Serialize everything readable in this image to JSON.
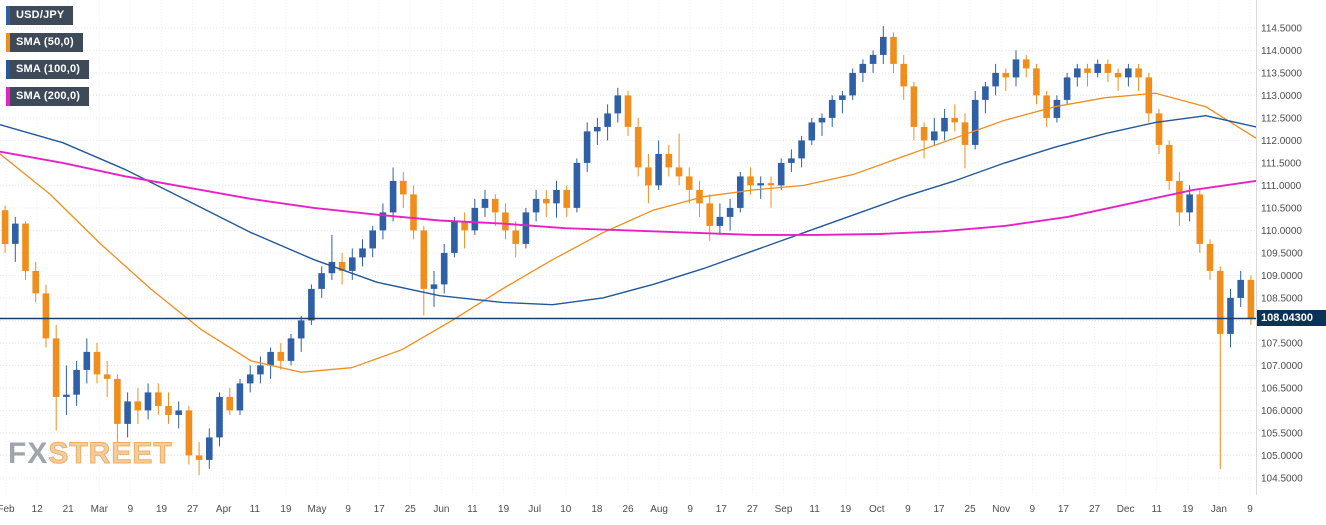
{
  "chart": {
    "symbol": "USD/JPY",
    "legend": [
      {
        "label": "USD/JPY",
        "color": "#2f5fa5"
      },
      {
        "label": "SMA (50,0)",
        "color": "#ef8e1c"
      },
      {
        "label": "SMA (100,0)",
        "color": "#23589c"
      },
      {
        "label": "SMA (200,0)",
        "color": "#e622c6"
      }
    ],
    "watermark": {
      "part1": "FX",
      "part2": "STREET"
    },
    "last_price_label": "108.04300",
    "badge_bg": "#0d3257"
  },
  "chart_data": {
    "type": "candlestick",
    "title": "USD/JPY",
    "symbol": "USD/JPY",
    "ylim": [
      104.5,
      114.5
    ],
    "grid": true,
    "legend_position": "top-left",
    "last_price": 108.043,
    "last_price_line_color": "#1c3b60",
    "candle_up_color": "#2f5fa5",
    "candle_down_color": "#ef8e1c",
    "y_ticks": [
      "114.5000",
      "114.0000",
      "113.5000",
      "113.0000",
      "112.5000",
      "112.0000",
      "111.5000",
      "111.0000",
      "110.5000",
      "110.0000",
      "109.5000",
      "109.0000",
      "108.5000",
      "107.5000",
      "107.0000",
      "106.5000",
      "106.0000",
      "105.5000",
      "105.0000",
      "104.5000"
    ],
    "x_ticks": [
      "Feb",
      "12",
      "21",
      "Mar",
      "9",
      "19",
      "27",
      "Apr",
      "11",
      "19",
      "May",
      "9",
      "17",
      "25",
      "Jun",
      "11",
      "19",
      "Jul",
      "10",
      "18",
      "26",
      "Aug",
      "9",
      "17",
      "27",
      "Sep",
      "11",
      "19",
      "Oct",
      "9",
      "17",
      "25",
      "Nov",
      "9",
      "17",
      "27",
      "Dec",
      "11",
      "19",
      "Jan",
      "9"
    ],
    "candles": [
      [
        110.45,
        110.55,
        109.5,
        109.7
      ],
      [
        109.7,
        110.3,
        109.3,
        110.15
      ],
      [
        110.15,
        110.2,
        108.9,
        109.1
      ],
      [
        109.1,
        109.3,
        108.4,
        108.6
      ],
      [
        108.6,
        108.8,
        107.4,
        107.6
      ],
      [
        107.6,
        107.9,
        105.55,
        106.3
      ],
      [
        106.3,
        107.0,
        105.9,
        106.35
      ],
      [
        106.35,
        107.1,
        106.1,
        106.9
      ],
      [
        106.9,
        107.6,
        106.6,
        107.3
      ],
      [
        107.3,
        107.5,
        106.6,
        106.8
      ],
      [
        106.8,
        107.1,
        106.3,
        106.7
      ],
      [
        106.7,
        106.8,
        105.3,
        105.7
      ],
      [
        105.7,
        106.4,
        105.4,
        106.2
      ],
      [
        106.2,
        106.5,
        105.7,
        106.0
      ],
      [
        106.0,
        106.6,
        105.8,
        106.4
      ],
      [
        106.4,
        106.6,
        105.9,
        106.1
      ],
      [
        106.1,
        106.4,
        105.7,
        105.9
      ],
      [
        105.9,
        106.2,
        105.6,
        106.0
      ],
      [
        106.0,
        106.1,
        104.8,
        105.0
      ],
      [
        105.0,
        105.3,
        104.56,
        104.9
      ],
      [
        104.9,
        105.6,
        104.7,
        105.4
      ],
      [
        105.4,
        106.4,
        105.2,
        106.3
      ],
      [
        106.3,
        106.5,
        105.9,
        106.0
      ],
      [
        106.0,
        106.7,
        105.9,
        106.6
      ],
      [
        106.6,
        107.0,
        106.4,
        106.8
      ],
      [
        106.8,
        107.2,
        106.6,
        107.0
      ],
      [
        107.0,
        107.4,
        106.7,
        107.3
      ],
      [
        107.3,
        107.5,
        106.9,
        107.1
      ],
      [
        107.1,
        107.7,
        107.0,
        107.6
      ],
      [
        107.6,
        108.1,
        107.3,
        108.0
      ],
      [
        108.0,
        108.8,
        107.9,
        108.7
      ],
      [
        108.7,
        109.2,
        108.5,
        109.05
      ],
      [
        109.05,
        109.9,
        108.9,
        109.3
      ],
      [
        109.3,
        109.5,
        108.8,
        109.1
      ],
      [
        109.1,
        109.6,
        108.9,
        109.4
      ],
      [
        109.4,
        109.8,
        109.2,
        109.6
      ],
      [
        109.6,
        110.1,
        109.4,
        110.0
      ],
      [
        110.0,
        110.6,
        109.8,
        110.4
      ],
      [
        110.4,
        111.4,
        110.2,
        111.1
      ],
      [
        111.1,
        111.3,
        110.5,
        110.8
      ],
      [
        110.8,
        111.0,
        109.8,
        110.0
      ],
      [
        110.0,
        110.1,
        108.11,
        108.7
      ],
      [
        108.7,
        109.1,
        108.3,
        108.8
      ],
      [
        108.8,
        109.7,
        108.6,
        109.5
      ],
      [
        109.5,
        110.3,
        109.4,
        110.2
      ],
      [
        110.2,
        110.4,
        109.6,
        110.0
      ],
      [
        110.0,
        110.7,
        109.9,
        110.5
      ],
      [
        110.5,
        110.9,
        110.3,
        110.7
      ],
      [
        110.7,
        110.8,
        110.1,
        110.4
      ],
      [
        110.4,
        110.6,
        109.8,
        110.0
      ],
      [
        110.0,
        110.2,
        109.4,
        109.7
      ],
      [
        109.7,
        110.5,
        109.6,
        110.4
      ],
      [
        110.4,
        110.9,
        110.2,
        110.7
      ],
      [
        110.7,
        110.9,
        110.3,
        110.6
      ],
      [
        110.6,
        111.1,
        110.28,
        110.9
      ],
      [
        110.9,
        111.0,
        110.3,
        110.5
      ],
      [
        110.5,
        111.6,
        110.4,
        111.5
      ],
      [
        111.5,
        112.4,
        111.3,
        112.2
      ],
      [
        112.2,
        112.5,
        111.9,
        112.3
      ],
      [
        112.3,
        112.8,
        112.0,
        112.6
      ],
      [
        112.6,
        113.17,
        112.4,
        113.0
      ],
      [
        113.0,
        113.1,
        112.1,
        112.3
      ],
      [
        112.3,
        112.5,
        111.2,
        111.4
      ],
      [
        111.4,
        111.7,
        110.6,
        111.0
      ],
      [
        111.0,
        112.0,
        110.9,
        111.7
      ],
      [
        111.7,
        111.9,
        111.2,
        111.4
      ],
      [
        111.4,
        112.15,
        111.0,
        111.2
      ],
      [
        111.2,
        111.4,
        110.6,
        110.9
      ],
      [
        110.9,
        111.1,
        110.3,
        110.6
      ],
      [
        110.6,
        110.8,
        109.77,
        110.1
      ],
      [
        110.1,
        110.6,
        109.9,
        110.3
      ],
      [
        110.3,
        110.7,
        110.0,
        110.5
      ],
      [
        110.5,
        111.3,
        110.4,
        111.2
      ],
      [
        111.2,
        111.4,
        110.8,
        111.0
      ],
      [
        111.0,
        111.2,
        110.7,
        111.05
      ],
      [
        111.05,
        111.2,
        110.5,
        111.0
      ],
      [
        111.0,
        111.6,
        110.9,
        111.5
      ],
      [
        111.5,
        111.8,
        111.3,
        111.6
      ],
      [
        111.6,
        112.1,
        111.4,
        112.0
      ],
      [
        112.0,
        112.5,
        111.9,
        112.4
      ],
      [
        112.4,
        112.6,
        112.1,
        112.5
      ],
      [
        112.5,
        113.0,
        112.3,
        112.9
      ],
      [
        112.9,
        113.1,
        112.6,
        113.0
      ],
      [
        113.0,
        113.6,
        112.9,
        113.5
      ],
      [
        113.5,
        113.8,
        113.3,
        113.7
      ],
      [
        113.7,
        114.0,
        113.5,
        113.9
      ],
      [
        113.9,
        114.54,
        113.7,
        114.3
      ],
      [
        114.3,
        114.4,
        113.5,
        113.7
      ],
      [
        113.7,
        113.9,
        112.9,
        113.2
      ],
      [
        113.2,
        113.3,
        112.0,
        112.3
      ],
      [
        112.3,
        112.4,
        111.6,
        112.0
      ],
      [
        112.0,
        112.5,
        111.9,
        112.2
      ],
      [
        112.2,
        112.7,
        112.0,
        112.5
      ],
      [
        112.5,
        112.8,
        112.2,
        112.4
      ],
      [
        112.4,
        112.6,
        111.38,
        111.9
      ],
      [
        111.9,
        113.1,
        111.8,
        112.9
      ],
      [
        112.9,
        113.3,
        112.6,
        113.2
      ],
      [
        113.2,
        113.7,
        113.0,
        113.5
      ],
      [
        113.5,
        113.6,
        113.1,
        113.4
      ],
      [
        113.4,
        114.0,
        113.2,
        113.8
      ],
      [
        113.8,
        113.9,
        113.4,
        113.6
      ],
      [
        113.6,
        113.7,
        112.8,
        113.0
      ],
      [
        113.0,
        113.1,
        112.3,
        112.5
      ],
      [
        112.5,
        113.0,
        112.4,
        112.9
      ],
      [
        112.9,
        113.5,
        112.8,
        113.4
      ],
      [
        113.4,
        113.7,
        113.2,
        113.6
      ],
      [
        113.6,
        113.7,
        113.2,
        113.5
      ],
      [
        113.5,
        113.8,
        113.4,
        113.7
      ],
      [
        113.7,
        113.8,
        113.3,
        113.5
      ],
      [
        113.5,
        113.6,
        113.1,
        113.4
      ],
      [
        113.4,
        113.7,
        113.2,
        113.6
      ],
      [
        113.6,
        113.7,
        113.1,
        113.4
      ],
      [
        113.4,
        113.5,
        112.4,
        112.6
      ],
      [
        112.6,
        112.7,
        111.7,
        111.9
      ],
      [
        111.9,
        112.0,
        110.9,
        111.1
      ],
      [
        111.1,
        111.3,
        110.1,
        110.4
      ],
      [
        110.4,
        111.0,
        110.2,
        110.8
      ],
      [
        110.8,
        110.9,
        109.5,
        109.7
      ],
      [
        109.7,
        109.8,
        108.9,
        109.1
      ],
      [
        109.1,
        109.2,
        104.7,
        107.7
      ],
      [
        107.7,
        108.7,
        107.4,
        108.5
      ],
      [
        108.5,
        109.1,
        108.3,
        108.9
      ],
      [
        108.9,
        109.0,
        107.9,
        108.04
      ]
    ],
    "series": [
      {
        "name": "SMA (50,0)",
        "period": 50,
        "color": "#ef8e1c",
        "stroke_width": 1.3,
        "points": [
          [
            0,
            111.7
          ],
          [
            0.04,
            110.8
          ],
          [
            0.08,
            109.7
          ],
          [
            0.12,
            108.7
          ],
          [
            0.16,
            107.8
          ],
          [
            0.2,
            107.1
          ],
          [
            0.24,
            106.85
          ],
          [
            0.28,
            106.95
          ],
          [
            0.32,
            107.35
          ],
          [
            0.36,
            108.0
          ],
          [
            0.4,
            108.7
          ],
          [
            0.44,
            109.35
          ],
          [
            0.48,
            109.95
          ],
          [
            0.52,
            110.45
          ],
          [
            0.56,
            110.75
          ],
          [
            0.6,
            110.9
          ],
          [
            0.64,
            111.0
          ],
          [
            0.68,
            111.25
          ],
          [
            0.72,
            111.65
          ],
          [
            0.76,
            112.05
          ],
          [
            0.8,
            112.45
          ],
          [
            0.84,
            112.75
          ],
          [
            0.88,
            112.95
          ],
          [
            0.92,
            113.05
          ],
          [
            0.96,
            112.75
          ],
          [
            1,
            112.05
          ]
        ]
      },
      {
        "name": "SMA (100,0)",
        "period": 100,
        "color": "#23589c",
        "stroke_width": 1.4,
        "points": [
          [
            0,
            112.35
          ],
          [
            0.05,
            111.95
          ],
          [
            0.1,
            111.35
          ],
          [
            0.15,
            110.65
          ],
          [
            0.2,
            109.95
          ],
          [
            0.25,
            109.35
          ],
          [
            0.3,
            108.85
          ],
          [
            0.35,
            108.55
          ],
          [
            0.4,
            108.4
          ],
          [
            0.44,
            108.35
          ],
          [
            0.48,
            108.5
          ],
          [
            0.52,
            108.8
          ],
          [
            0.56,
            109.15
          ],
          [
            0.6,
            109.55
          ],
          [
            0.64,
            109.95
          ],
          [
            0.68,
            110.35
          ],
          [
            0.72,
            110.75
          ],
          [
            0.76,
            111.1
          ],
          [
            0.8,
            111.5
          ],
          [
            0.84,
            111.85
          ],
          [
            0.88,
            112.15
          ],
          [
            0.92,
            112.4
          ],
          [
            0.96,
            112.55
          ],
          [
            1,
            112.3
          ]
        ]
      },
      {
        "name": "SMA (200,0)",
        "period": 200,
        "color": "#e622c6",
        "stroke_width": 1.9,
        "points": [
          [
            0,
            111.75
          ],
          [
            0.05,
            111.5
          ],
          [
            0.1,
            111.2
          ],
          [
            0.15,
            110.95
          ],
          [
            0.2,
            110.7
          ],
          [
            0.25,
            110.5
          ],
          [
            0.3,
            110.35
          ],
          [
            0.35,
            110.22
          ],
          [
            0.4,
            110.15
          ],
          [
            0.45,
            110.05
          ],
          [
            0.5,
            110.0
          ],
          [
            0.55,
            109.95
          ],
          [
            0.6,
            109.9
          ],
          [
            0.65,
            109.9
          ],
          [
            0.7,
            109.92
          ],
          [
            0.75,
            109.98
          ],
          [
            0.8,
            110.1
          ],
          [
            0.85,
            110.3
          ],
          [
            0.9,
            110.6
          ],
          [
            0.95,
            110.9
          ],
          [
            1,
            111.1
          ]
        ]
      }
    ]
  }
}
